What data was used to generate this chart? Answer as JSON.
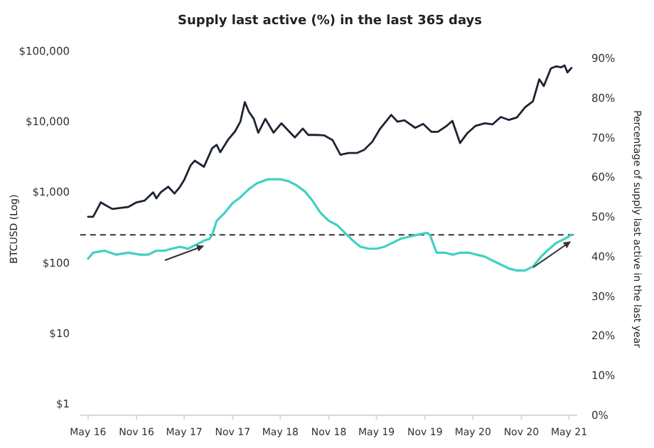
{
  "chart_data": {
    "type": "line",
    "title": "Supply last active (%) in the last 365 days",
    "ylabel": "BTCUSD (Log)",
    "y2label": "Percentage of supply last active in the last year",
    "log": "y",
    "grid": false,
    "line_style": "solid",
    "marker": "none",
    "xlim": [
      "2016-04-01",
      "2021-06-01"
    ],
    "xticks": [
      {
        "value": "2016-05-01",
        "label": "May 16"
      },
      {
        "value": "2016-11-01",
        "label": "Nov 16"
      },
      {
        "value": "2017-05-01",
        "label": "May 17"
      },
      {
        "value": "2017-11-01",
        "label": "Nov 17"
      },
      {
        "value": "2018-05-01",
        "label": "May 18"
      },
      {
        "value": "2018-11-01",
        "label": "Nov 18"
      },
      {
        "value": "2019-05-01",
        "label": "May 19"
      },
      {
        "value": "2019-11-01",
        "label": "Nov 19"
      },
      {
        "value": "2020-05-01",
        "label": "May 20"
      },
      {
        "value": "2020-11-01",
        "label": "Nov 20"
      },
      {
        "value": "2021-05-01",
        "label": "May 21"
      }
    ],
    "ylim": [
      0.69,
      100000
    ],
    "yticks": [
      {
        "value": 1,
        "label": "$1"
      },
      {
        "value": 10,
        "label": "$10"
      },
      {
        "value": 100,
        "label": "$100"
      },
      {
        "value": 1000,
        "label": "$1,000"
      },
      {
        "value": 10000,
        "label": "$10,000"
      },
      {
        "value": 100000,
        "label": "$100,000"
      }
    ],
    "y2lim": [
      0,
      90
    ],
    "y2ticks": [
      {
        "value": 0,
        "label": "0%"
      },
      {
        "value": 10,
        "label": "10%"
      },
      {
        "value": 20,
        "label": "20%"
      },
      {
        "value": 30,
        "label": "30%"
      },
      {
        "value": 40,
        "label": "40%"
      },
      {
        "value": 50,
        "label": "50%"
      },
      {
        "value": 60,
        "label": "60%"
      },
      {
        "value": 70,
        "label": "70%"
      },
      {
        "value": 80,
        "label": "80%"
      },
      {
        "value": 90,
        "label": "90%"
      }
    ],
    "ref_lines": [
      {
        "axis": "y2",
        "value": 45.5,
        "color": "#333333",
        "line_style": "dashed"
      }
    ],
    "series": [
      {
        "color": "#1c2433",
        "x": [
          "2016-05-01",
          "2016-05-20",
          "2016-06-05",
          "2016-06-18",
          "2016-07-05",
          "2016-08-01",
          "2016-09-01",
          "2016-10-01",
          "2016-11-01",
          "2016-12-01",
          "2017-01-03",
          "2017-01-15",
          "2017-02-01",
          "2017-03-01",
          "2017-03-25",
          "2017-04-15",
          "2017-05-01",
          "2017-05-25",
          "2017-06-10",
          "2017-07-15",
          "2017-08-15",
          "2017-09-01",
          "2017-09-15",
          "2017-10-15",
          "2017-11-10",
          "2017-11-30",
          "2017-12-17",
          "2018-01-01",
          "2018-01-20",
          "2018-02-06",
          "2018-03-05",
          "2018-04-05",
          "2018-05-05",
          "2018-06-25",
          "2018-07-25",
          "2018-08-15",
          "2018-09-15",
          "2018-10-15",
          "2018-11-15",
          "2018-12-15",
          "2019-01-15",
          "2019-02-15",
          "2019-03-15",
          "2019-04-15",
          "2019-05-15",
          "2019-06-26",
          "2019-07-20",
          "2019-08-15",
          "2019-09-25",
          "2019-10-25",
          "2019-11-25",
          "2019-12-20",
          "2020-01-20",
          "2020-02-13",
          "2020-03-13",
          "2020-04-10",
          "2020-05-10",
          "2020-06-15",
          "2020-07-15",
          "2020-08-15",
          "2020-09-15",
          "2020-10-15",
          "2020-11-15",
          "2020-12-15",
          "2021-01-08",
          "2021-01-25",
          "2021-02-21",
          "2021-03-13",
          "2021-04-01",
          "2021-04-14",
          "2021-04-25",
          "2021-05-10"
        ],
        "values": [
          450,
          450,
          580,
          720,
          660,
          580,
          600,
          620,
          720,
          760,
          1000,
          820,
          1000,
          1200,
          960,
          1200,
          1500,
          2400,
          2800,
          2300,
          4200,
          4700,
          3700,
          5600,
          7300,
          10000,
          19000,
          14000,
          11000,
          7000,
          11000,
          7000,
          9500,
          6000,
          8000,
          6500,
          6500,
          6400,
          5500,
          3400,
          3600,
          3600,
          4000,
          5200,
          8000,
          12500,
          10000,
          10500,
          8200,
          9300,
          7200,
          7200,
          8600,
          10300,
          5000,
          6900,
          8700,
          9500,
          9200,
          11700,
          10600,
          11500,
          16000,
          19500,
          40000,
          32000,
          57000,
          61000,
          59000,
          63000,
          50000,
          58000
        ]
      },
      {
        "color": "#3fd1c2",
        "axis": "y2",
        "x": [
          "2016-05-01",
          "2016-05-20",
          "2016-07-01",
          "2016-08-15",
          "2016-10-01",
          "2016-11-15",
          "2016-12-15",
          "2017-01-15",
          "2017-02-15",
          "2017-03-15",
          "2017-04-15",
          "2017-05-15",
          "2017-06-15",
          "2017-07-15",
          "2017-08-05",
          "2017-08-15",
          "2017-09-01",
          "2017-10-01",
          "2017-11-01",
          "2017-12-01",
          "2018-01-01",
          "2018-02-01",
          "2018-03-15",
          "2018-05-01",
          "2018-06-01",
          "2018-07-01",
          "2018-08-01",
          "2018-09-01",
          "2018-10-01",
          "2018-11-01",
          "2018-12-01",
          "2019-01-01",
          "2019-02-01",
          "2019-03-01",
          "2019-04-01",
          "2019-05-01",
          "2019-06-01",
          "2019-07-01",
          "2019-08-01",
          "2019-09-01",
          "2019-10-01",
          "2019-11-10",
          "2019-11-20",
          "2019-12-15",
          "2020-01-15",
          "2020-02-15",
          "2020-03-15",
          "2020-04-15",
          "2020-05-15",
          "2020-06-15",
          "2020-07-15",
          "2020-08-15",
          "2020-09-15",
          "2020-10-15",
          "2020-11-15",
          "2020-12-15",
          "2021-01-15",
          "2021-02-15",
          "2021-03-15",
          "2021-04-15",
          "2021-05-10"
        ],
        "values": [
          39.5,
          41,
          41.5,
          40.5,
          41,
          40.5,
          40.5,
          41.5,
          41.5,
          42,
          42.5,
          42,
          43,
          44,
          44.5,
          45.5,
          49,
          51,
          53.5,
          55,
          57,
          58.5,
          59.5,
          59.5,
          59,
          58,
          56.5,
          54,
          51,
          49,
          48,
          46,
          44,
          42.5,
          42,
          42,
          42.5,
          43.5,
          44.5,
          45,
          45.5,
          46,
          45.5,
          41,
          41,
          40.5,
          41,
          41,
          40.5,
          40,
          39,
          38,
          37,
          36.5,
          36.5,
          37.5,
          40,
          42,
          43.5,
          44.5,
          45.5
        ]
      }
    ]
  }
}
